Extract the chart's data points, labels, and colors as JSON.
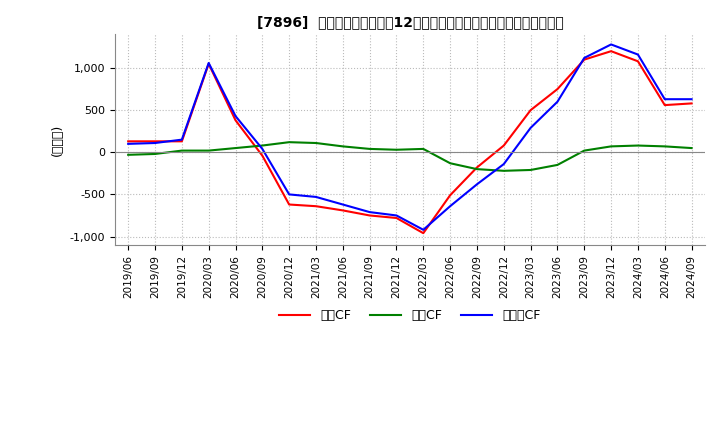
{
  "title": "[7896]  キャッシュフローの12か月移動合計の対前年同期増減額の推移",
  "ylabel": "(百万円)",
  "ylim": [
    -1100,
    1400
  ],
  "yticks": [
    -1000,
    -500,
    0,
    500,
    1000
  ],
  "legend_labels": [
    "営業CF",
    "投資CF",
    "フリーCF"
  ],
  "line_colors": [
    "#ff0000",
    "#008000",
    "#0000ff"
  ],
  "background_color": "#ffffff",
  "grid_color": "#bbbbbb",
  "dates": [
    "2019/06",
    "2019/09",
    "2019/12",
    "2020/03",
    "2020/06",
    "2020/09",
    "2020/12",
    "2021/03",
    "2021/06",
    "2021/09",
    "2021/12",
    "2022/03",
    "2022/06",
    "2022/09",
    "2022/12",
    "2023/03",
    "2023/06",
    "2023/09",
    "2023/12",
    "2024/03",
    "2024/06",
    "2024/09"
  ],
  "operating_cf": [
    130,
    130,
    130,
    1050,
    380,
    -40,
    -620,
    -640,
    -690,
    -750,
    -780,
    -960,
    -510,
    -180,
    80,
    500,
    750,
    1100,
    1200,
    1080,
    560,
    580
  ],
  "investing_cf": [
    -30,
    -20,
    20,
    20,
    50,
    80,
    120,
    110,
    70,
    40,
    30,
    40,
    -130,
    -200,
    -220,
    -210,
    -150,
    20,
    70,
    80,
    70,
    50
  ],
  "free_cf": [
    100,
    110,
    150,
    1060,
    430,
    40,
    -500,
    -530,
    -620,
    -710,
    -750,
    -920,
    -640,
    -380,
    -140,
    290,
    600,
    1120,
    1280,
    1160,
    630,
    630
  ]
}
